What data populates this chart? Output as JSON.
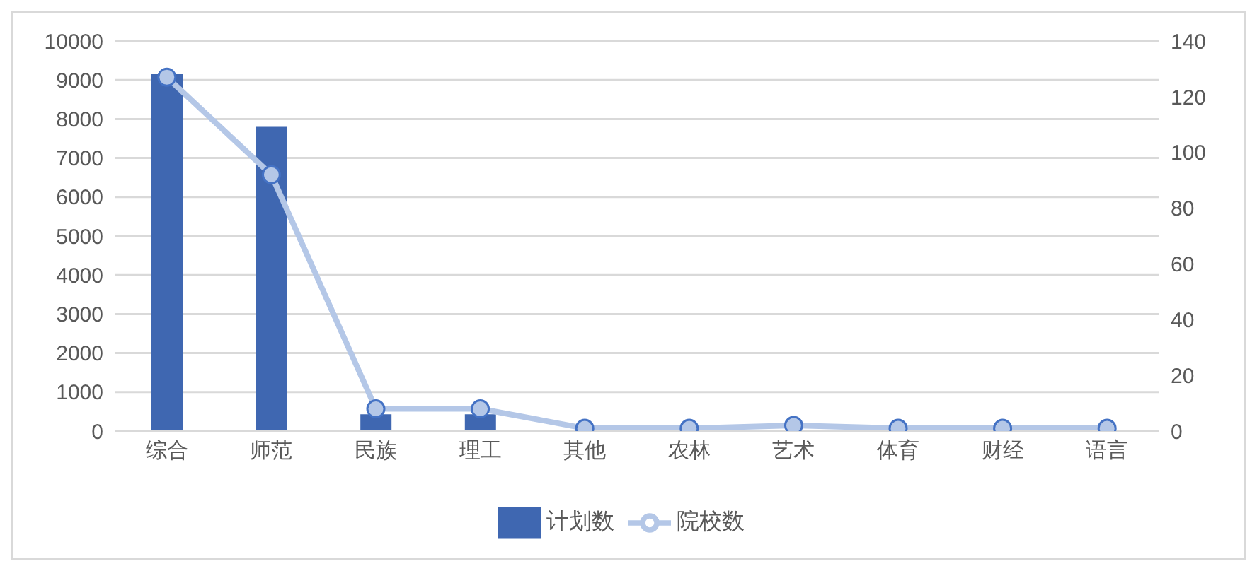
{
  "chart_data": {
    "type": "bar",
    "categories": [
      "综合",
      "师范",
      "民族",
      "理工",
      "其他",
      "农林",
      "艺术",
      "体育",
      "财经",
      "语言"
    ],
    "series": [
      {
        "name": "计划数",
        "color": "#3f67b1",
        "values": [
          9150,
          7800,
          430,
          430,
          null,
          null,
          null,
          null,
          null,
          null
        ]
      },
      {
        "name": "院校数",
        "type": "line",
        "axis": "y2",
        "color": "#b4c7e7",
        "marker": "circle",
        "values": [
          127,
          92,
          8,
          8,
          1,
          1,
          2,
          1,
          1,
          1
        ]
      }
    ],
    "ylim": [
      0,
      10000
    ],
    "yticks": [
      0,
      1000,
      2000,
      3000,
      4000,
      5000,
      6000,
      7000,
      8000,
      9000,
      10000
    ],
    "y2lim": [
      0,
      140
    ],
    "y2ticks": [
      0,
      20,
      40,
      60,
      80,
      100,
      120,
      140
    ],
    "grid": "y",
    "legend": "bottom"
  }
}
